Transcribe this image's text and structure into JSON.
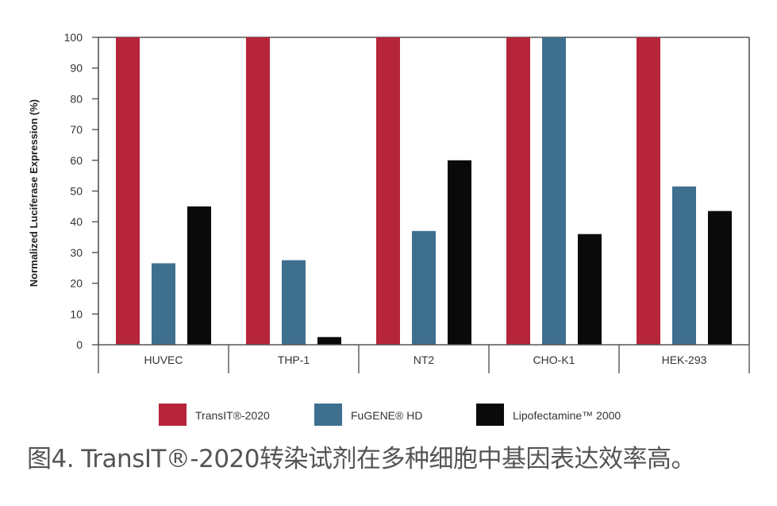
{
  "chart_data": {
    "type": "bar",
    "ylabel": "Normalized Luciferase Expression (%)",
    "xlabel": "",
    "ylim": [
      0,
      100
    ],
    "yticks": [
      0,
      10,
      20,
      30,
      40,
      50,
      60,
      70,
      80,
      90,
      100
    ],
    "categories": [
      "HUVEC",
      "THP-1",
      "NT2",
      "CHO-K1",
      "HEK-293"
    ],
    "series": [
      {
        "name": "TransIT®-2020",
        "color": "#b7253b",
        "values": [
          100,
          100,
          100,
          100,
          100
        ]
      },
      {
        "name": "FuGENE® HD",
        "color": "#3f6f8f",
        "values": [
          26.5,
          27.5,
          37,
          100,
          51.5
        ]
      },
      {
        "name": "Lipofectamine™ 2000",
        "color": "#0a0a0a",
        "values": [
          45,
          2.5,
          60,
          36,
          43.5
        ]
      }
    ],
    "legend_position": "bottom",
    "grid": false
  },
  "caption": "图4. TransIT®-2020转染试剂在多种细胞中基因表达效率高。"
}
